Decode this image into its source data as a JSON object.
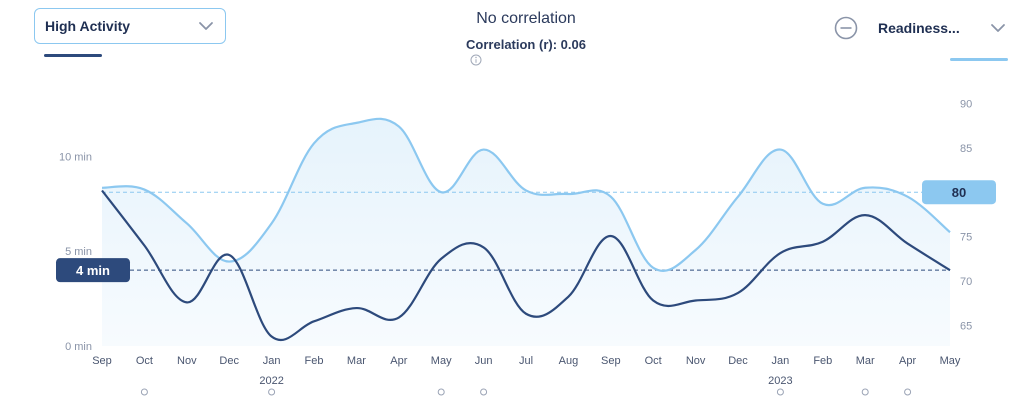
{
  "header": {
    "left_select": "High Activity",
    "title": "No correlation",
    "subtitle": "Correlation (r): 0.06",
    "right_select": "Readiness..."
  },
  "icons": {
    "left_chevron": "chevron-down-icon",
    "right_chevron": "chevron-down-icon",
    "info": "info-icon",
    "minus": "minus-circle-icon"
  },
  "colors": {
    "dark_series": "#2d4a7c",
    "light_series": "#8cc8f0",
    "area_fill": "#e6f3fc",
    "dark_badge": "#2d4a7c",
    "light_badge": "#8cc8f0"
  },
  "chart_data": {
    "type": "line",
    "x": [
      "Sep",
      "Oct",
      "Nov",
      "Dec",
      "Jan",
      "Feb",
      "Mar",
      "Apr",
      "May",
      "Jun",
      "Jul",
      "Aug",
      "Sep",
      "Oct",
      "Nov",
      "Dec",
      "Jan",
      "Feb",
      "Mar",
      "Apr",
      "May"
    ],
    "year_labels": [
      {
        "index": 4,
        "label": "2022"
      },
      {
        "index": 16,
        "label": "2023"
      }
    ],
    "marker_indices": [
      1,
      4,
      8,
      9,
      16,
      18,
      19
    ],
    "series": [
      {
        "axis": "left",
        "values": [
          8.2,
          5.3,
          2.3,
          4.8,
          0.5,
          1.3,
          2.0,
          1.5,
          4.6,
          5.2,
          1.7,
          2.6,
          5.8,
          2.4,
          2.4,
          2.8,
          4.9,
          5.5,
          6.9,
          5.4,
          4.0
        ],
        "avg": 4.0,
        "avg_label": "4 min"
      },
      {
        "axis": "right",
        "values": [
          80.5,
          80.3,
          76.5,
          72.2,
          76.5,
          85.5,
          87.8,
          87.4,
          80.0,
          84.8,
          80.2,
          79.8,
          79.5,
          71.5,
          73.5,
          79.5,
          84.8,
          78.7,
          80.5,
          79.5,
          75.5
        ],
        "avg": 80,
        "avg_label": "80"
      }
    ],
    "y_left": {
      "ticks": [
        0,
        5,
        10
      ],
      "tick_labels": [
        "0 min",
        "5 min",
        "10 min"
      ],
      "range": [
        0,
        13.5
      ]
    },
    "y_right": {
      "ticks": [
        65,
        70,
        75,
        80,
        85,
        90
      ],
      "range": [
        62.7,
        91.5
      ]
    }
  }
}
